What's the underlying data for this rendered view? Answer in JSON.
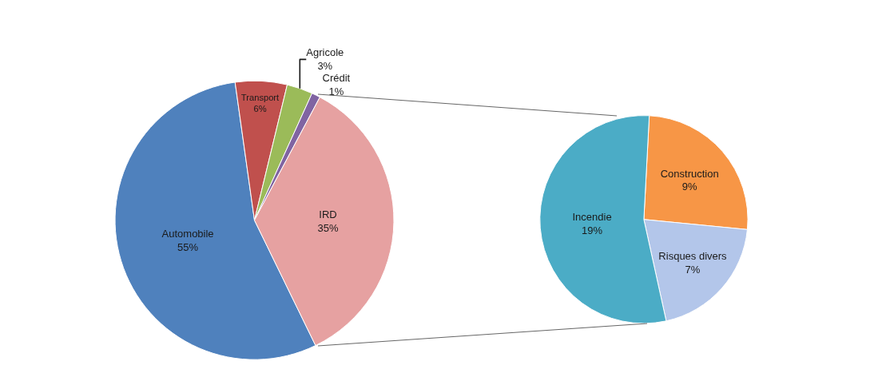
{
  "chart_data": [
    {
      "type": "pie",
      "categories": [
        "Automobile",
        "Transport",
        "Agricole",
        "Crédit",
        "IRD"
      ],
      "values": [
        55,
        6,
        3,
        1,
        35
      ],
      "value_labels": [
        "55%",
        "6%",
        "3%",
        "1%",
        "35%"
      ],
      "colors": [
        "#4f81bd",
        "#c0504d",
        "#9bbb59",
        "#8064a2",
        "#e6a1a1"
      ]
    },
    {
      "type": "pie",
      "categories": [
        "Construction",
        "Risques divers",
        "Incendie"
      ],
      "values": [
        9,
        7,
        19
      ],
      "value_labels": [
        "9%",
        "7%",
        "19%"
      ],
      "colors": [
        "#f79646",
        "#b3c6ea",
        "#4bacc6"
      ]
    }
  ]
}
